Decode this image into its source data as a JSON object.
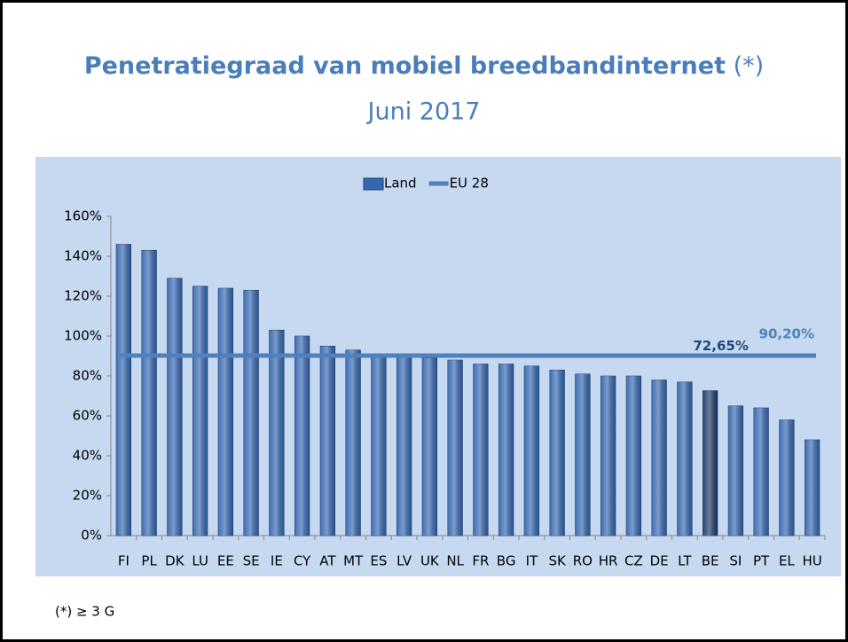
{
  "chart_data": {
    "type": "bar",
    "title": "Penetratiegraad van mobiel breedbandinternet",
    "title_mark": "(*)",
    "subtitle": "Juni 2017",
    "footnote": "(*) ≥ 3 G",
    "categories": [
      "FI",
      "PL",
      "DK",
      "LU",
      "EE",
      "SE",
      "IE",
      "CY",
      "AT",
      "MT",
      "ES",
      "LV",
      "UK",
      "NL",
      "FR",
      "BG",
      "IT",
      "SK",
      "RO",
      "HR",
      "CZ",
      "DE",
      "LT",
      "BE",
      "SI",
      "PT",
      "EL",
      "HU"
    ],
    "series": [
      {
        "name": "Land",
        "color": "#3567b0",
        "colors": [
          "#3567b0",
          "#3567b0",
          "#3567b0",
          "#3567b0",
          "#3567b0",
          "#3567b0",
          "#3567b0",
          "#3567b0",
          "#3567b0",
          "#3567b0",
          "#3567b0",
          "#3567b0",
          "#3567b0",
          "#3567b0",
          "#3567b0",
          "#3567b0",
          "#3567b0",
          "#3567b0",
          "#3567b0",
          "#3567b0",
          "#3567b0",
          "#3567b0",
          "#3567b0",
          "#1f3a66",
          "#3567b0",
          "#3567b0",
          "#3567b0",
          "#3567b0"
        ],
        "values": [
          146,
          143,
          129,
          125,
          124,
          123,
          103,
          100,
          95,
          93,
          90,
          90,
          89,
          88,
          86,
          86,
          85,
          83,
          81,
          80,
          80,
          78,
          77,
          72.65,
          65,
          64,
          58,
          48
        ],
        "value_labels": [
          null,
          null,
          null,
          null,
          null,
          null,
          null,
          null,
          null,
          null,
          null,
          null,
          null,
          null,
          null,
          null,
          null,
          null,
          null,
          null,
          null,
          null,
          null,
          "72,65%",
          null,
          null,
          null,
          null
        ]
      },
      {
        "name": "EU 28",
        "type": "line",
        "color": "#4f81bd",
        "value": 90.2,
        "value_label": "90,20%"
      }
    ],
    "ylim": [
      0,
      160
    ],
    "yticks": [
      {
        "value": 0,
        "label": "0%"
      },
      {
        "value": 20,
        "label": "20%"
      },
      {
        "value": 40,
        "label": "40%"
      },
      {
        "value": 60,
        "label": "60%"
      },
      {
        "value": 80,
        "label": "80%"
      },
      {
        "value": 100,
        "label": "100%"
      },
      {
        "value": 120,
        "label": "120%"
      },
      {
        "value": 140,
        "label": "140%"
      },
      {
        "value": 160,
        "label": "160%"
      }
    ],
    "legend": "top"
  }
}
